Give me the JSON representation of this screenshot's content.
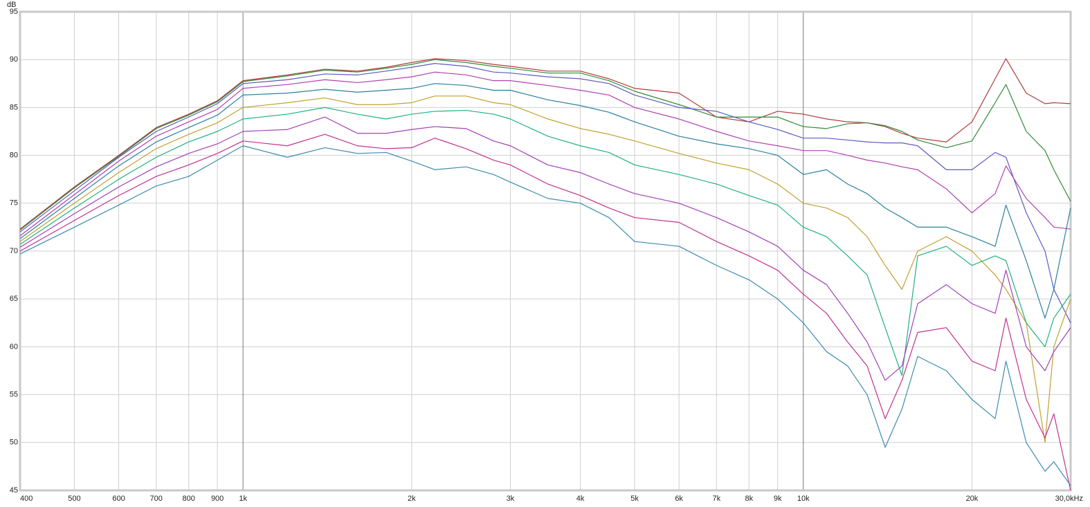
{
  "chart_data": {
    "type": "line",
    "y_label": "dB",
    "xscale": "log",
    "grid": true,
    "xlim": [
      400,
      30000
    ],
    "ylim": [
      45,
      95
    ],
    "xticks": [
      400,
      500,
      600,
      700,
      800,
      900,
      {
        "value": 1000,
        "label": "1k"
      },
      {
        "value": 2000,
        "label": "2k"
      },
      {
        "value": 3000,
        "label": "3k"
      },
      {
        "value": 4000,
        "label": "4k"
      },
      {
        "value": 5000,
        "label": "5k"
      },
      {
        "value": 6000,
        "label": "6k"
      },
      {
        "value": 7000,
        "label": "7k"
      },
      {
        "value": 8000,
        "label": "8k"
      },
      {
        "value": 9000,
        "label": "9k"
      },
      {
        "value": 10000,
        "label": "10k"
      },
      {
        "value": 20000,
        "label": "20k"
      },
      {
        "value": 30000,
        "label": "30,0kHz"
      }
    ],
    "yticks": [
      45,
      50,
      55,
      60,
      65,
      70,
      75,
      80,
      85,
      90,
      95
    ],
    "x": [
      400,
      500,
      600,
      700,
      800,
      900,
      1000,
      1200,
      1400,
      1600,
      1800,
      2000,
      2200,
      2500,
      2800,
      3000,
      3500,
      4000,
      4500,
      5000,
      6000,
      7000,
      8000,
      9000,
      10000,
      11000,
      12000,
      13000,
      14000,
      15000,
      16000,
      18000,
      20000,
      22000,
      23000,
      25000,
      27000,
      28000,
      30000
    ],
    "series": [
      {
        "color": "#b03a3a",
        "values": [
          72.3,
          76.7,
          80.0,
          82.9,
          84.3,
          85.7,
          87.8,
          88.4,
          89.0,
          88.8,
          89.2,
          89.7,
          90.1,
          89.9,
          89.5,
          89.3,
          88.8,
          88.8,
          88.0,
          87.0,
          86.5,
          84.0,
          83.5,
          84.6,
          84.3,
          83.8,
          83.5,
          83.4,
          83.0,
          82.3,
          81.8,
          81.4,
          83.5,
          88.0,
          90.1,
          86.5,
          85.4,
          85.5,
          85.4
        ]
      },
      {
        "color": "#2e8b34",
        "values": [
          72.2,
          76.6,
          79.9,
          82.8,
          84.2,
          85.6,
          87.7,
          88.3,
          88.9,
          88.7,
          89.1,
          89.5,
          90.0,
          89.7,
          89.3,
          89.1,
          88.6,
          88.6,
          87.8,
          86.7,
          85.3,
          84.0,
          84.0,
          84.0,
          83.0,
          82.8,
          83.3,
          83.4,
          83.1,
          82.5,
          81.6,
          80.8,
          81.5,
          85.5,
          87.4,
          82.5,
          80.5,
          78.5,
          75.2
        ]
      },
      {
        "color": "#5a5ac0",
        "values": [
          72.0,
          76.3,
          79.8,
          82.5,
          84.0,
          85.4,
          87.5,
          87.9,
          88.5,
          88.4,
          88.8,
          89.2,
          89.6,
          89.3,
          88.7,
          88.6,
          88.2,
          88.0,
          87.5,
          86.3,
          85.0,
          84.6,
          83.5,
          82.7,
          81.8,
          81.8,
          81.6,
          81.4,
          81.3,
          81.3,
          81.0,
          78.5,
          78.5,
          80.3,
          79.8,
          74.0,
          70.0,
          66.0,
          62.5
        ]
      },
      {
        "color": "#b040b0",
        "values": [
          71.6,
          75.9,
          79.4,
          82.0,
          83.5,
          84.8,
          87.0,
          87.4,
          87.9,
          87.6,
          87.9,
          88.2,
          88.7,
          88.4,
          87.8,
          87.8,
          87.3,
          86.8,
          86.3,
          85.0,
          83.8,
          82.5,
          81.5,
          81.0,
          80.5,
          80.5,
          80.0,
          79.5,
          79.2,
          78.8,
          78.5,
          76.5,
          74.0,
          76.0,
          78.9,
          75.5,
          73.5,
          72.5,
          72.3
        ]
      },
      {
        "color": "#2a7fa0",
        "values": [
          71.3,
          75.5,
          78.9,
          81.4,
          82.9,
          84.2,
          86.3,
          86.5,
          86.9,
          86.6,
          86.8,
          87.0,
          87.5,
          87.3,
          86.8,
          86.8,
          85.8,
          85.2,
          84.5,
          83.5,
          82.0,
          81.2,
          80.7,
          80.0,
          78.0,
          78.5,
          77.0,
          76.0,
          74.5,
          73.5,
          72.5,
          72.5,
          71.5,
          70.5,
          74.8,
          69.0,
          63.0,
          66.0,
          74.5
        ]
      },
      {
        "color": "#c0a030",
        "values": [
          71.0,
          75.0,
          78.2,
          80.7,
          82.2,
          83.4,
          85.0,
          85.5,
          86.0,
          85.3,
          85.3,
          85.5,
          86.2,
          86.2,
          85.5,
          85.3,
          83.8,
          82.8,
          82.2,
          81.5,
          80.2,
          79.2,
          78.5,
          77.0,
          75.0,
          74.5,
          73.5,
          71.5,
          68.5,
          66.0,
          70.0,
          71.5,
          70.0,
          67.5,
          66.0,
          62.5,
          50.0,
          60.0,
          65.0
        ]
      },
      {
        "color": "#20b080",
        "values": [
          70.7,
          74.5,
          77.5,
          79.8,
          81.4,
          82.5,
          83.8,
          84.3,
          85.0,
          84.3,
          83.8,
          84.3,
          84.6,
          84.7,
          84.3,
          83.8,
          82.0,
          81.0,
          80.3,
          79.0,
          78.0,
          77.0,
          75.8,
          74.8,
          72.5,
          71.5,
          69.5,
          67.5,
          62.0,
          57.0,
          69.5,
          70.5,
          68.5,
          69.5,
          69.0,
          62.5,
          60.0,
          63.0,
          65.5
        ]
      },
      {
        "color": "#a040b8",
        "values": [
          70.4,
          73.9,
          76.7,
          78.8,
          80.2,
          81.2,
          82.5,
          82.7,
          84.0,
          82.3,
          82.3,
          82.7,
          83.0,
          82.8,
          81.5,
          81.0,
          79.0,
          78.2,
          77.0,
          76.0,
          75.0,
          73.5,
          72.0,
          70.5,
          68.0,
          66.5,
          63.5,
          60.5,
          56.5,
          58.0,
          64.5,
          66.5,
          64.5,
          63.5,
          68.0,
          60.0,
          57.5,
          59.5,
          62.0
        ]
      },
      {
        "color": "#c03090",
        "values": [
          70.0,
          73.2,
          75.8,
          77.8,
          79.0,
          80.2,
          81.5,
          81.0,
          82.2,
          81.0,
          80.7,
          80.8,
          81.8,
          80.7,
          79.5,
          79.0,
          77.0,
          75.8,
          74.5,
          73.5,
          73.0,
          71.0,
          69.5,
          68.0,
          65.5,
          63.5,
          60.5,
          58.0,
          52.5,
          56.5,
          61.5,
          62.0,
          58.5,
          57.5,
          63.0,
          54.5,
          50.5,
          53.0,
          45.0
        ]
      },
      {
        "color": "#3a8ab0",
        "values": [
          69.7,
          72.5,
          74.8,
          76.8,
          77.8,
          79.5,
          81.0,
          79.8,
          80.8,
          80.2,
          80.3,
          79.4,
          78.5,
          78.8,
          78.0,
          77.2,
          75.5,
          75.0,
          73.5,
          71.0,
          70.5,
          68.5,
          67.0,
          65.0,
          62.5,
          59.5,
          58.0,
          55.0,
          49.5,
          53.5,
          59.0,
          57.5,
          54.5,
          52.5,
          58.5,
          50.0,
          47.0,
          48.0,
          45.5
        ]
      }
    ]
  }
}
